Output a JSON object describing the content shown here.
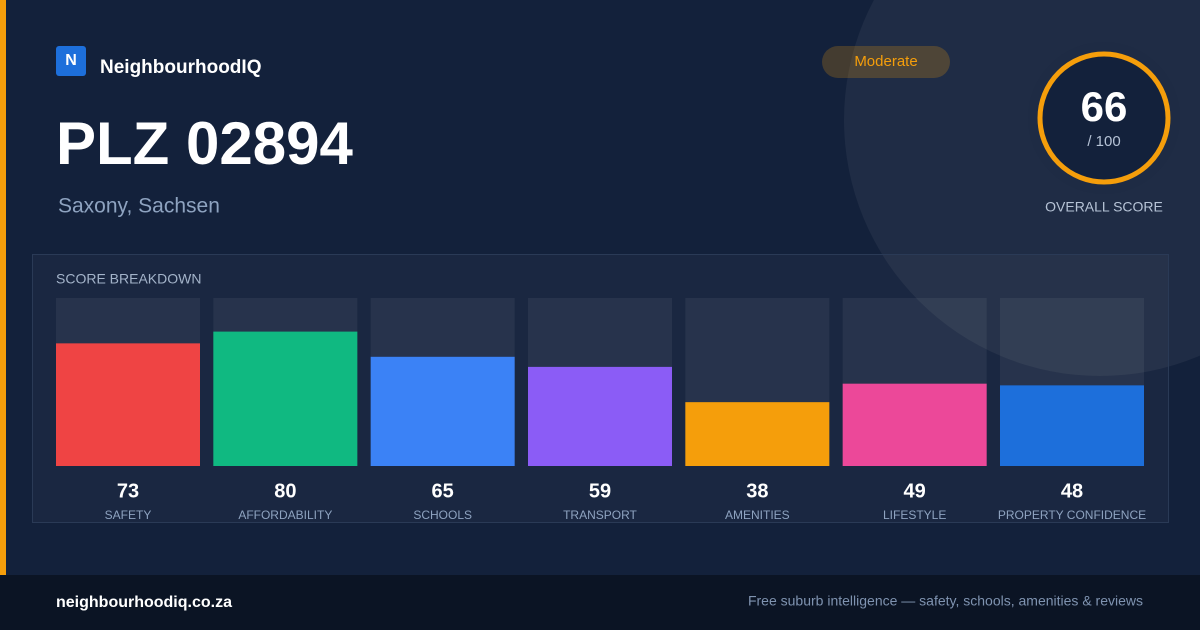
{
  "brand": {
    "logo": "N",
    "name": "NeighbourhoodIQ"
  },
  "badge": "Moderate",
  "title": "PLZ 02894",
  "subtitle": "Saxony, Sachsen",
  "score": {
    "value": 66,
    "label": "/ 100",
    "caption": "OVERALL SCORE"
  },
  "breakdown": {
    "title": "SCORE BREAKDOWN",
    "ylim": [
      0,
      100
    ],
    "items": [
      {
        "label": "SAFETY",
        "value": 73,
        "color": "#ef4444"
      },
      {
        "label": "AFFORDABILITY",
        "value": 80,
        "color": "#10b981"
      },
      {
        "label": "SCHOOLS",
        "value": 65,
        "color": "#3b82f6"
      },
      {
        "label": "TRANSPORT",
        "value": 59,
        "color": "#8b5cf6"
      },
      {
        "label": "AMENITIES",
        "value": 38,
        "color": "#f59e0b"
      },
      {
        "label": "LIFESTYLE",
        "value": 49,
        "color": "#ec4899"
      },
      {
        "label": "PROPERTY CONFIDENCE",
        "value": 48,
        "color": "#1d6fdb"
      }
    ]
  },
  "footer": {
    "domain": "neighbourhoodiq.co.za",
    "tagline": "Free suburb intelligence — safety, schools, amenities & reviews"
  }
}
